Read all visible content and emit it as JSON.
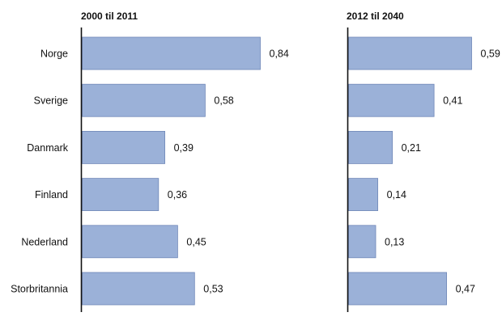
{
  "chart_data": [
    {
      "type": "bar",
      "orientation": "horizontal",
      "title": "2000 til 2011",
      "categories": [
        "Norge",
        "Sverige",
        "Danmark",
        "Finland",
        "Nederland",
        "Storbritannia"
      ],
      "values": [
        0.84,
        0.58,
        0.39,
        0.36,
        0.45,
        0.53
      ],
      "value_labels": [
        "0,84",
        "0,58",
        "0,39",
        "0,36",
        "0,45",
        "0,53"
      ],
      "xlim": [
        0,
        0.84
      ],
      "bar_color": "#9bb1d8",
      "bar_edge_color": "#6f87b8"
    },
    {
      "type": "bar",
      "orientation": "horizontal",
      "title": "2012 til 2040",
      "categories": [
        "Norge",
        "Sverige",
        "Danmark",
        "Finland",
        "Nederland",
        "Storbritannia"
      ],
      "values": [
        0.59,
        0.41,
        0.21,
        0.14,
        0.13,
        0.47
      ],
      "value_labels": [
        "0,59",
        "0,41",
        "0,21",
        "0,14",
        "0,13",
        "0,47"
      ],
      "xlim": [
        0,
        0.59
      ],
      "bar_color": "#9bb1d8",
      "bar_edge_color": "#6f87b8"
    }
  ]
}
